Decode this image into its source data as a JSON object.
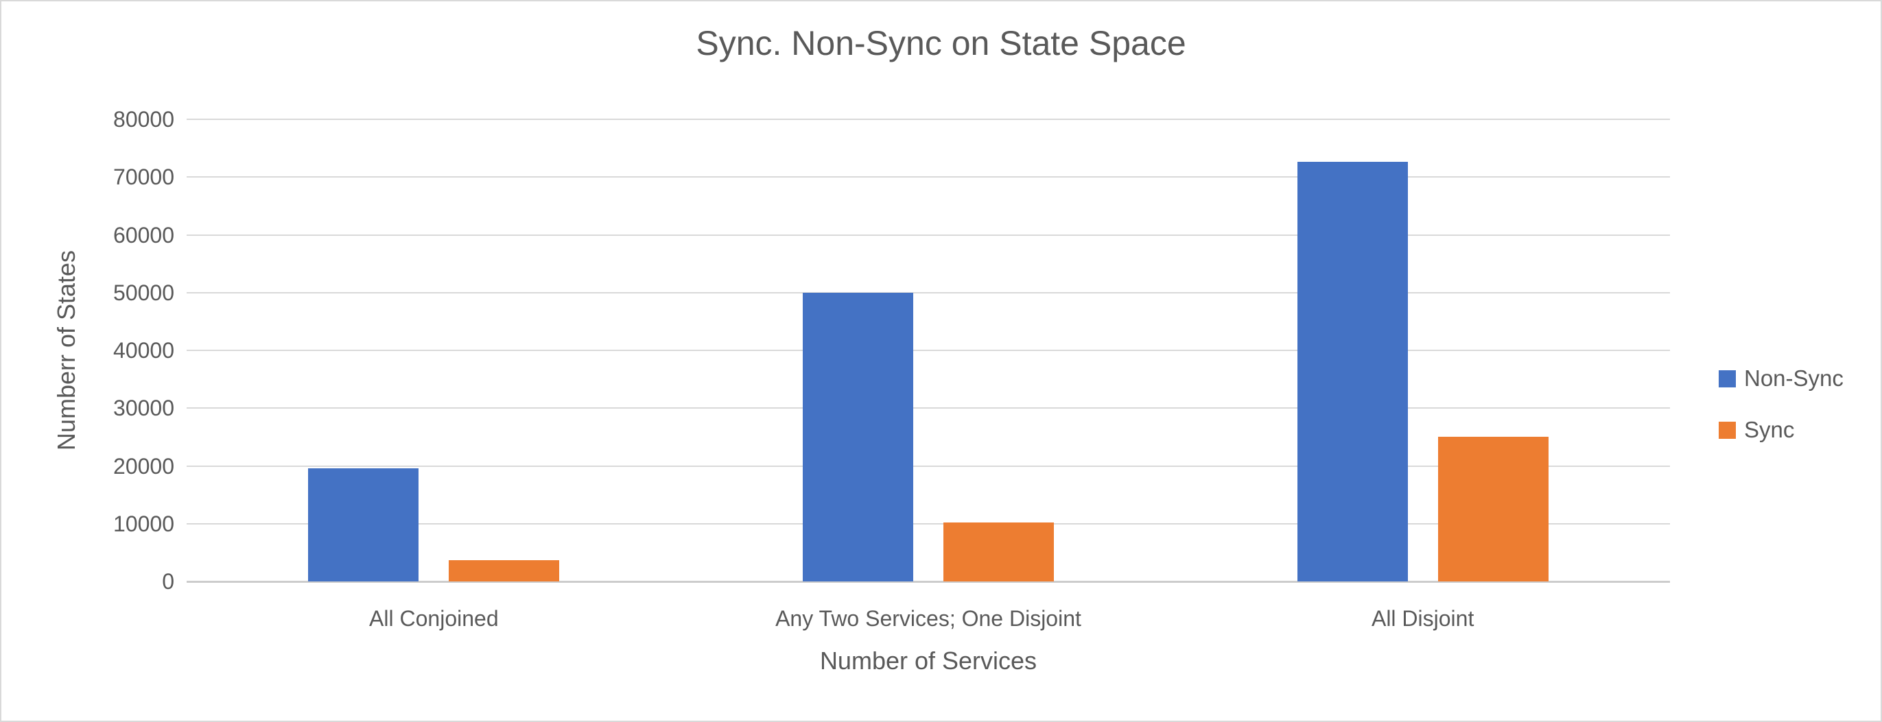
{
  "chart_data": {
    "type": "bar",
    "title": "Sync. Non-Sync on State Space",
    "xlabel": "Number of Services",
    "ylabel": "Numberr of States",
    "categories": [
      "All Conjoined",
      "Any Two Services; One Disjoint",
      "All Disjoint"
    ],
    "series": [
      {
        "name": "Non-Sync",
        "color": "#4472C4",
        "values": [
          19600,
          50000,
          72700
        ]
      },
      {
        "name": "Sync",
        "color": "#ED7D31",
        "values": [
          3700,
          10200,
          25000
        ]
      }
    ],
    "ylim": [
      0,
      80000
    ],
    "yticks": [
      0,
      10000,
      20000,
      30000,
      40000,
      50000,
      60000,
      70000,
      80000
    ],
    "grid": true,
    "legend": {
      "position": "right"
    },
    "colors": {
      "text": "#595959",
      "gridline": "#D9D9D9",
      "axis_line": "#CCCCCC",
      "frame_border": "#D9D9D9",
      "background": "#FFFFFF"
    }
  }
}
